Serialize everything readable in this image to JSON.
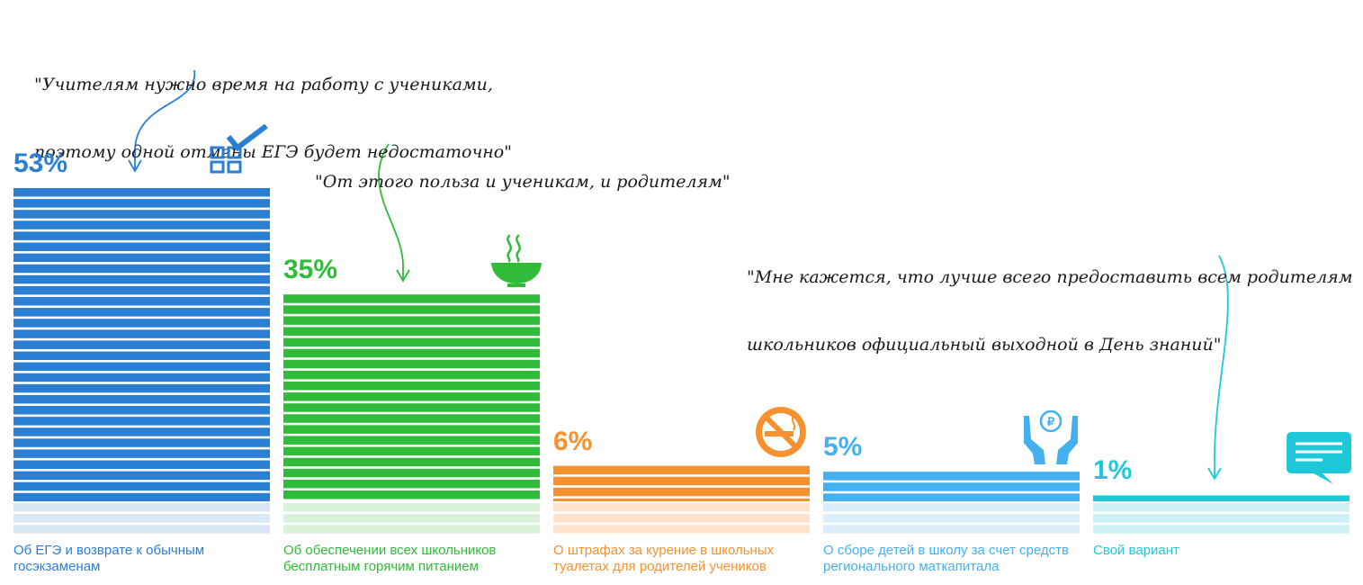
{
  "chart_data": {
    "type": "bar",
    "categories": [
      "Об ЕГЭ и возврате к обычным госэкзаменам",
      "Об обеспечении всех школьников бесплатным горячим питанием",
      "О штрафах за курение в школьных туалетах для родителей учеников",
      "О сборе детей в школу за счет средств регионального маткапитала",
      "Свой вариант"
    ],
    "values": [
      53,
      35,
      6,
      5,
      1
    ],
    "value_labels": [
      "53%",
      "35%",
      "6%",
      "5%",
      "1%"
    ],
    "colors": [
      "#2a7fd4",
      "#30bb3a",
      "#f7912f",
      "#44b0f0",
      "#1dc9d8"
    ],
    "light_colors": [
      "#dbe7f5",
      "#d8f1d8",
      "#fde3cc",
      "#dcedfa",
      "#cbf1f4"
    ],
    "icons": [
      "checklist-icon",
      "hot-soup-icon",
      "no-smoking-icon",
      "hands-ruble-icon",
      "chat-bubble-icon"
    ],
    "ylim": [
      0,
      53
    ],
    "grid": false,
    "legend": "none"
  },
  "quotes": [
    {
      "line1": "\"Учителям нужно время на работу с учениками,",
      "line2": "поэтому одной отмены ЕГЭ будет недостаточно\""
    },
    {
      "line1": "\"От этого польза и ученикам, и родителям\"",
      "line2": ""
    },
    {
      "line1": "\"Мне кажется, что лучше всего предоставить всем родителям",
      "line2": "школьников официальный выходной в День знаний\""
    }
  ]
}
